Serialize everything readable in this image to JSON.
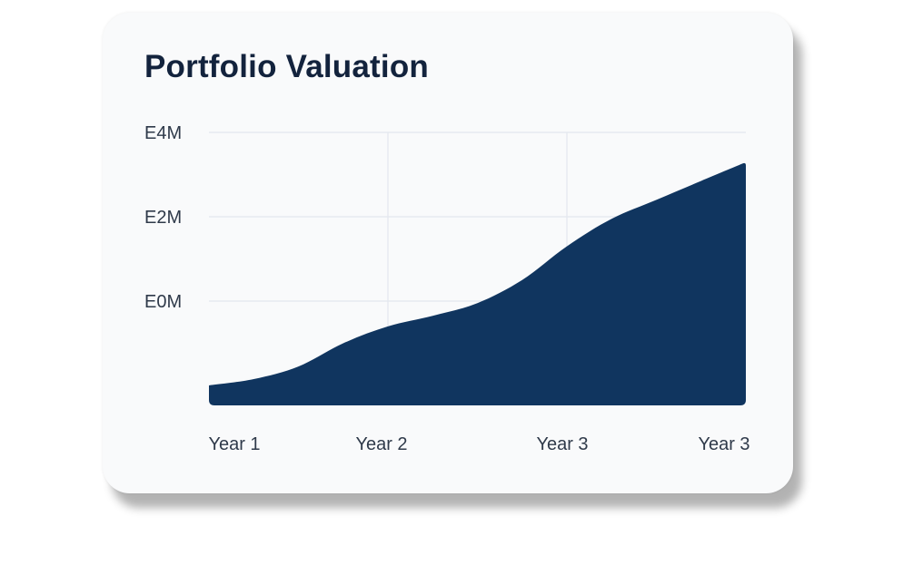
{
  "card": {
    "title": "Portfolio Valuation"
  },
  "colors": {
    "area_fill": "#10355f",
    "grid": "#e3e7ee",
    "title": "#13233d",
    "tick_text": "#2f3a4a",
    "card_bg": "#f9fafb"
  },
  "chart_data": {
    "type": "area",
    "title": "Portfolio Valuation",
    "xlabel": "",
    "ylabel": "",
    "x_tick_labels": [
      "Year 1",
      "Year 2",
      "Year 3",
      "Year 3"
    ],
    "y_tick_labels": [
      "E4M",
      "E2M",
      "E0M"
    ],
    "y_tick_values": [
      4,
      2,
      0
    ],
    "ylim": [
      -2.5,
      4
    ],
    "xlim": [
      0,
      3
    ],
    "grid": true,
    "legend": "none",
    "series": [
      {
        "x": [
          0,
          0.25,
          0.5,
          0.75,
          1.0,
          1.25,
          1.5,
          1.75,
          2.0,
          2.25,
          2.5,
          2.75,
          3.0
        ],
        "values": [
          -2.0,
          -1.85,
          -1.55,
          -1.0,
          -0.6,
          -0.35,
          -0.05,
          0.5,
          1.3,
          1.95,
          2.4,
          2.85,
          3.3
        ]
      }
    ]
  }
}
